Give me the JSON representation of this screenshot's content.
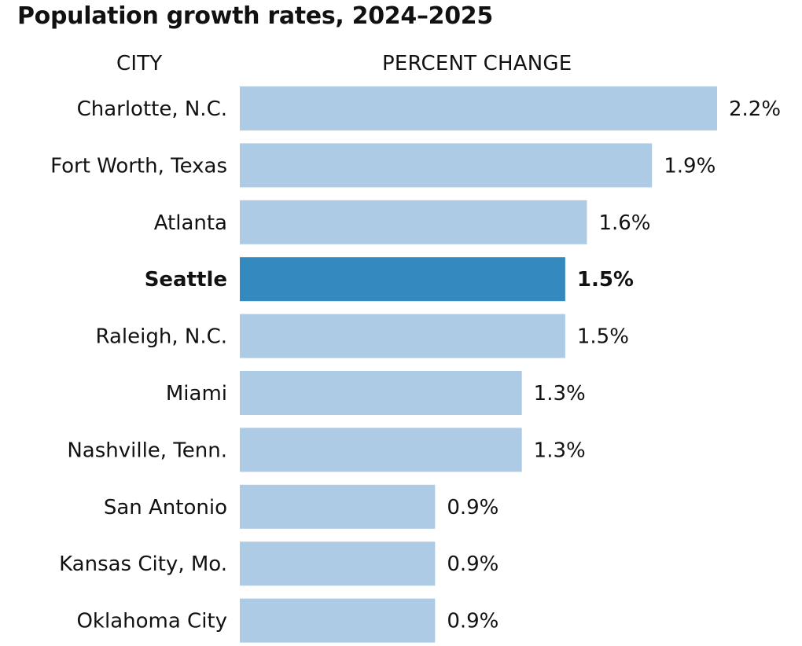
{
  "chart_data": {
    "type": "bar",
    "orientation": "horizontal",
    "title": "Population growth rates, 2024–2025",
    "column_headers": {
      "category": "CITY",
      "value": "PERCENT CHANGE"
    },
    "categories": [
      "Charlotte, N.C.",
      "Fort Worth, Texas",
      "Atlanta",
      "Seattle",
      "Raleigh, N.C.",
      "Miami",
      "Nashville, Tenn.",
      "San Antonio",
      "Kansas City, Mo.",
      "Oklahoma City"
    ],
    "values": [
      2.2,
      1.9,
      1.6,
      1.5,
      1.5,
      1.3,
      1.3,
      0.9,
      0.9,
      0.9
    ],
    "value_labels": [
      "2.2%",
      "1.9%",
      "1.6%",
      "1.5%",
      "1.5%",
      "1.3%",
      "1.3%",
      "0.9%",
      "0.9%",
      "0.9%"
    ],
    "highlight": "Seattle",
    "xlim": [
      0,
      2.2
    ],
    "grid": false,
    "colors": {
      "bar": "#aecbe5",
      "highlight": "#3489bf",
      "text": "#111111"
    }
  }
}
